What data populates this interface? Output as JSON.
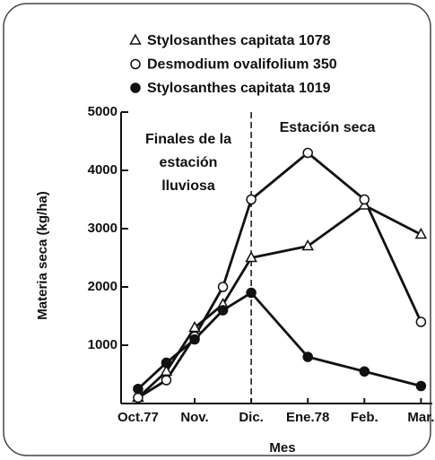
{
  "chart_data": {
    "type": "line",
    "y_label": "Materia seca (kg/ha)",
    "x_label": "Mes",
    "x": [
      0,
      0.5,
      1,
      1.5,
      2,
      3,
      4,
      5
    ],
    "xlim": [
      -0.3,
      5.2
    ],
    "xticks": [
      {
        "value": 0,
        "label": "Oct.77"
      },
      {
        "value": 1,
        "label": "Nov."
      },
      {
        "value": 2,
        "label": "Dic."
      },
      {
        "value": 3,
        "label": "Ene.78"
      },
      {
        "value": 4,
        "label": "Feb."
      },
      {
        "value": 5,
        "label": "Mar."
      }
    ],
    "ylim": [
      0,
      5000
    ],
    "yticks": [
      1000,
      2000,
      3000,
      4000,
      5000
    ],
    "divider_x": 2,
    "annotation_left": [
      "Finales de la",
      "estación",
      "lluviosa"
    ],
    "annotation_right": "Estación seca",
    "series": [
      {
        "name": "Stylosanthes capitata 1078",
        "color": "#111111",
        "marker": "triangle",
        "values": [
          100,
          550,
          1300,
          1700,
          2500,
          2700,
          3400,
          2900
        ]
      },
      {
        "name": "Desmodium ovalifolium 350",
        "color": "#111111",
        "marker": "circle-open",
        "values": [
          100,
          400,
          1150,
          2000,
          3500,
          4300,
          3500,
          1400
        ]
      },
      {
        "name": "Stylosanthes capitata 1019",
        "color": "#111111",
        "marker": "circle-filled",
        "values": [
          250,
          700,
          1100,
          1600,
          1900,
          800,
          550,
          300
        ]
      }
    ]
  }
}
